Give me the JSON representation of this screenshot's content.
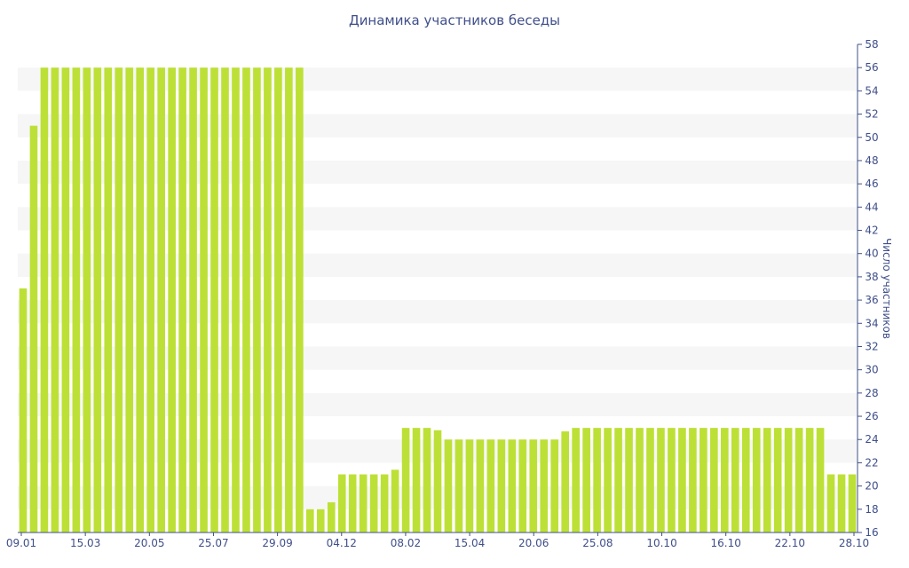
{
  "chart_data": {
    "type": "bar",
    "title": "Динамика участников беседы",
    "xlabel": "",
    "ylabel": "Число участников",
    "ylim": [
      16,
      58
    ],
    "yticks": [
      16,
      18,
      20,
      22,
      24,
      26,
      28,
      30,
      32,
      34,
      36,
      38,
      40,
      42,
      44,
      46,
      48,
      50,
      52,
      54,
      56,
      58
    ],
    "x_tick_labels": [
      "09.01",
      "15.03",
      "20.05",
      "25.07",
      "29.09",
      "04.12",
      "08.02",
      "15.04",
      "20.06",
      "25.08",
      "10.10",
      "16.10",
      "22.10",
      "28.10"
    ],
    "values": [
      37,
      51,
      56,
      56,
      56,
      56,
      56,
      56,
      56,
      56,
      56,
      56,
      56,
      56,
      56,
      56,
      56,
      56,
      56,
      56,
      56,
      56,
      56,
      56,
      56,
      56,
      56,
      18,
      18,
      18.6,
      21,
      21,
      21,
      21,
      21,
      21.4,
      25,
      25,
      25,
      24.8,
      24,
      24,
      24,
      24,
      24,
      24,
      24,
      24,
      24,
      24,
      24,
      24.7,
      25,
      25,
      25,
      25,
      25,
      25,
      25,
      25,
      25,
      25,
      25,
      25,
      25,
      25,
      25,
      25,
      25,
      25,
      25,
      25,
      25,
      25,
      25,
      25,
      21,
      21,
      21
    ],
    "bar_color": "#bde036",
    "band_color": "#f6f6f6",
    "text_color": "#3f4f8a",
    "grid": "alternating horizontal bands",
    "y_axis_position": "right",
    "legend": "none"
  }
}
